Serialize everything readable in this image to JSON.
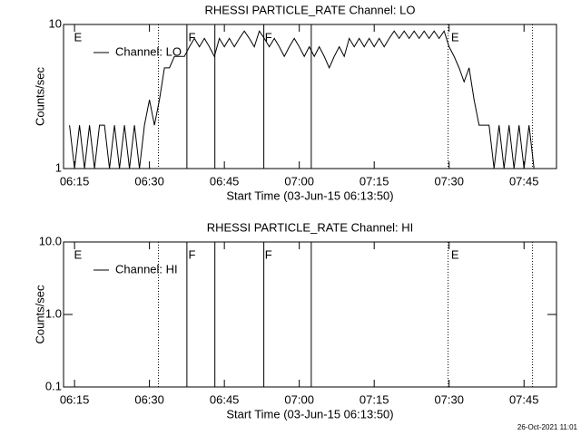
{
  "chart_data": [
    {
      "type": "line",
      "title": "RHESSI PARTICLE_RATE Channel: LO",
      "xlabel": "Start Time (03-Jun-15 06:13:50)",
      "ylabel": "Counts/sec",
      "log_y": true,
      "xlim": [
        372.8,
        471.5
      ],
      "ylim": [
        1,
        10
      ],
      "xticks": [
        {
          "value": 375,
          "label": "06:15"
        },
        {
          "value": 390,
          "label": "06:30"
        },
        {
          "value": 405,
          "label": "06:45"
        },
        {
          "value": 420,
          "label": "07:00"
        },
        {
          "value": 435,
          "label": "07:15"
        },
        {
          "value": 450,
          "label": "07:30"
        },
        {
          "value": 465,
          "label": "07:45"
        }
      ],
      "yticks": [
        1,
        10
      ],
      "vlines": [
        {
          "x": 391.8,
          "style": "dotted"
        },
        {
          "x": 397.5,
          "style": "solid"
        },
        {
          "x": 403.1,
          "style": "solid"
        },
        {
          "x": 412.9,
          "style": "solid"
        },
        {
          "x": 422.4,
          "style": "solid"
        },
        {
          "x": 449.8,
          "style": "dotted"
        },
        {
          "x": 466.7,
          "style": "dotted"
        }
      ],
      "annotations": [
        {
          "text": "E",
          "x": 374.9
        },
        {
          "text": "F",
          "x": 397.8
        },
        {
          "text": "F",
          "x": 413.1
        },
        {
          "text": "E",
          "x": 450.4
        }
      ],
      "x": [
        374,
        375,
        376,
        377,
        378,
        379,
        380,
        381,
        382,
        383,
        384,
        385,
        386,
        387,
        388,
        389,
        390,
        391,
        392,
        393,
        394,
        395,
        396,
        397,
        398,
        399,
        400,
        401,
        402,
        403,
        404,
        405,
        406,
        407,
        408,
        409,
        410,
        411,
        412,
        413,
        414,
        415,
        416,
        417,
        418,
        419,
        420,
        421,
        422,
        423,
        424,
        425,
        426,
        427,
        428,
        429,
        430,
        431,
        432,
        433,
        434,
        435,
        436,
        437,
        438,
        439,
        440,
        441,
        442,
        443,
        444,
        445,
        446,
        447,
        448,
        449,
        450,
        451,
        452,
        453,
        454,
        455,
        456,
        457,
        458,
        459,
        460,
        461,
        462,
        463,
        464,
        465,
        466,
        467
      ],
      "series": [
        {
          "name": "Channel: LO",
          "color": "#000000",
          "values": [
            2,
            1,
            2,
            1,
            2,
            1,
            2,
            2,
            1,
            2,
            1,
            2,
            1,
            2,
            1,
            2,
            3,
            2,
            3,
            5,
            5,
            6,
            6,
            6,
            7,
            8,
            7,
            8,
            7,
            6,
            8,
            7,
            8,
            7,
            8,
            9,
            8,
            7,
            9,
            8,
            7,
            8,
            7,
            6,
            7,
            8,
            7,
            6,
            7,
            6,
            7,
            6,
            5,
            6,
            7,
            6,
            8,
            7,
            8,
            7,
            8,
            7,
            8,
            7,
            8,
            9,
            8,
            9,
            8,
            9,
            8,
            9,
            8,
            9,
            8,
            9,
            7,
            6,
            5,
            4,
            5,
            3,
            2,
            2,
            2,
            1,
            2,
            1,
            2,
            1,
            2,
            1,
            2,
            1
          ]
        }
      ]
    },
    {
      "type": "line",
      "title": "RHESSI PARTICLE_RATE Channel: HI",
      "xlabel": "Start Time (03-Jun-15 06:13:50)",
      "ylabel": "Counts/sec",
      "log_y": true,
      "xlim": [
        372.8,
        471.5
      ],
      "ylim": [
        0.1,
        10
      ],
      "xticks": [
        {
          "value": 375,
          "label": "06:15"
        },
        {
          "value": 390,
          "label": "06:30"
        },
        {
          "value": 405,
          "label": "06:45"
        },
        {
          "value": 420,
          "label": "07:00"
        },
        {
          "value": 435,
          "label": "07:15"
        },
        {
          "value": 450,
          "label": "07:30"
        },
        {
          "value": 465,
          "label": "07:45"
        }
      ],
      "yticks": [
        0.1,
        {
          "value": 1,
          "label": "1.0"
        },
        {
          "value": 10,
          "label": "10.0"
        }
      ],
      "vlines": [
        {
          "x": 391.8,
          "style": "dotted"
        },
        {
          "x": 397.5,
          "style": "solid"
        },
        {
          "x": 403.1,
          "style": "solid"
        },
        {
          "x": 412.9,
          "style": "solid"
        },
        {
          "x": 422.4,
          "style": "solid"
        },
        {
          "x": 449.8,
          "style": "dotted"
        },
        {
          "x": 466.7,
          "style": "dotted"
        }
      ],
      "annotations": [
        {
          "text": "E",
          "x": 374.9
        },
        {
          "text": "F",
          "x": 397.8
        },
        {
          "text": "F",
          "x": 413.1
        },
        {
          "text": "E",
          "x": 450.4
        }
      ],
      "x": [],
      "series": [
        {
          "name": "Channel: HI",
          "color": "#000000",
          "values": []
        }
      ]
    }
  ],
  "footer": "26-Oct-2021 11:01"
}
